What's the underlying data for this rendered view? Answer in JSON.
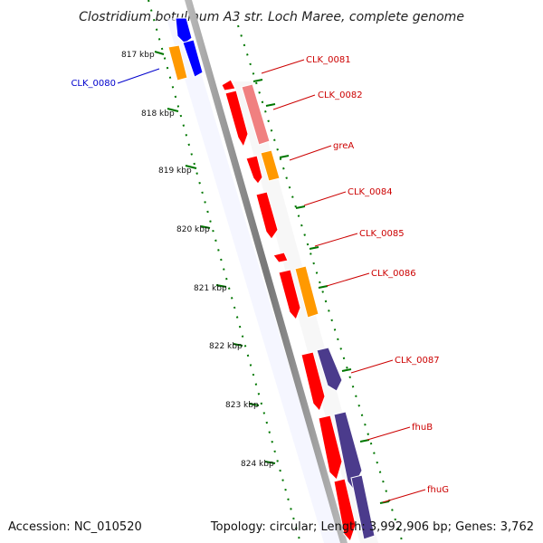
{
  "title": "Clostridium botulinum A3 str. Loch Maree, complete genome",
  "accession": "Accession: NC_010520",
  "summary": "Topology: circular; Length: 3,992,906 bp; Genes: 3,762",
  "scale_labels": [
    "817 kbp",
    "818 kbp",
    "819 kbp",
    "820 kbp",
    "821 kbp",
    "822 kbp",
    "823 kbp",
    "824 kbp"
  ],
  "gene_labels": [
    {
      "text": "CLK_0080",
      "color": "#0000cc"
    },
    {
      "text": "CLK_0081",
      "color": "#cc0000"
    },
    {
      "text": "CLK_0082",
      "color": "#cc0000"
    },
    {
      "text": "greA",
      "color": "#cc0000"
    },
    {
      "text": "CLK_0084",
      "color": "#cc0000"
    },
    {
      "text": "CLK_0085",
      "color": "#cc0000"
    },
    {
      "text": "CLK_0086",
      "color": "#cc0000"
    },
    {
      "text": "CLK_0087",
      "color": "#cc0000"
    },
    {
      "text": "fhuB",
      "color": "#cc0000"
    },
    {
      "text": "fhuG",
      "color": "#cc0000"
    }
  ],
  "colors": {
    "backbone": "#888888",
    "gene_red": "#ff0000",
    "gene_pink": "#f08080",
    "gene_orange": "#ff9900",
    "gene_blue": "#0000ff",
    "gene_purple": "#4b3b8c",
    "tick_green": "#007700"
  }
}
